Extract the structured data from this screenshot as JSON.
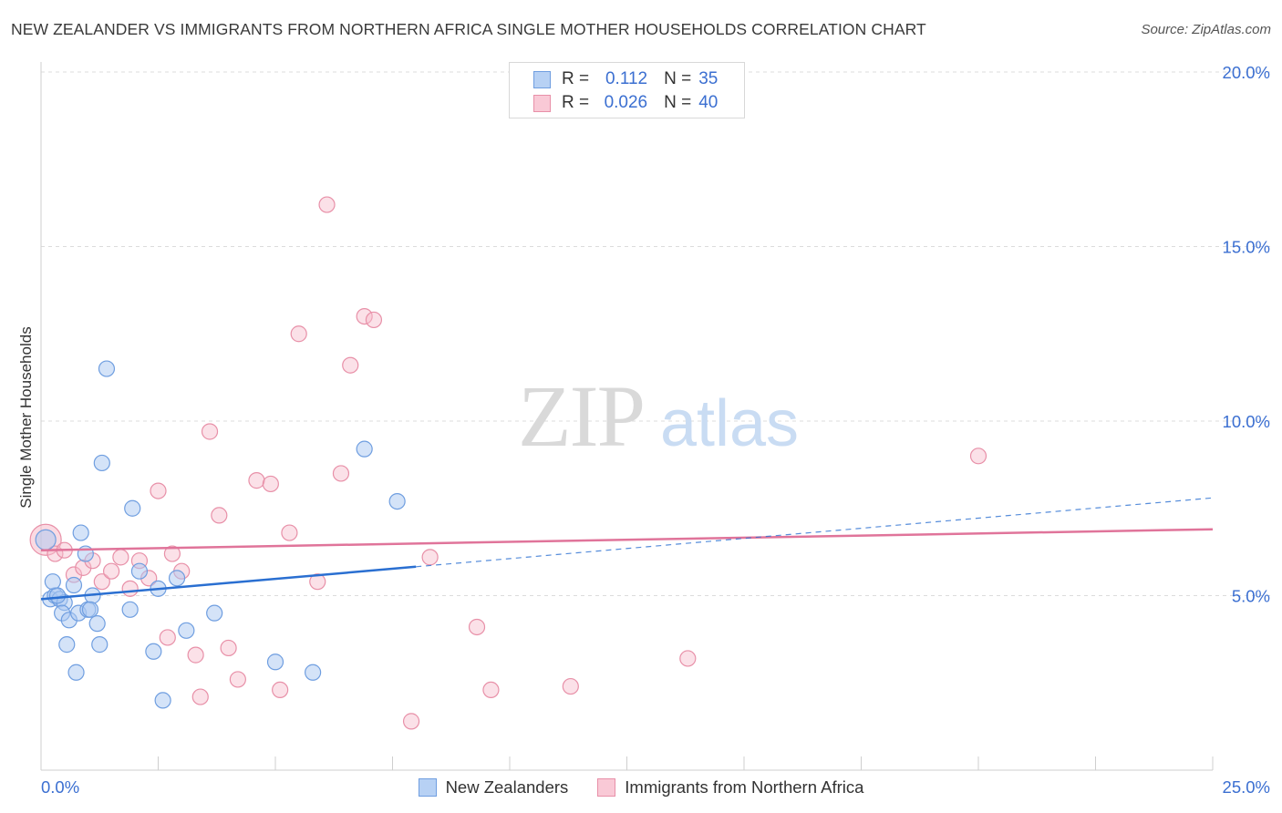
{
  "header": {
    "title": "NEW ZEALANDER VS IMMIGRANTS FROM NORTHERN AFRICA SINGLE MOTHER HOUSEHOLDS CORRELATION CHART",
    "source": "Source: ZipAtlas.com"
  },
  "legend_top": [
    {
      "r_label": "R =",
      "r_value": "0.112",
      "n_label": "N =",
      "n_value": "35"
    },
    {
      "r_label": "R =",
      "r_value": "0.026",
      "n_label": "N =",
      "n_value": "40"
    }
  ],
  "colors": {
    "blue_fill": "#a9c8f2",
    "blue_stroke": "#6f9ee0",
    "blue_line": "#2a6fd1",
    "pink_fill": "#f7bccb",
    "pink_stroke": "#e890a8",
    "pink_line": "#e0749a",
    "tick_text": "#3b6fd1",
    "grid": "#dcdcdc"
  },
  "chart_data": {
    "type": "scatter",
    "title": "NEW ZEALANDER VS IMMIGRANTS FROM NORTHERN AFRICA SINGLE MOTHER HOUSEHOLDS CORRELATION CHART",
    "xlabel": "",
    "ylabel": "Single Mother Households",
    "xlim": [
      0,
      25
    ],
    "ylim": [
      0,
      20.8
    ],
    "x_tick_labels": [
      "0.0%",
      "25.0%"
    ],
    "y_ticks": [
      5,
      10,
      15,
      20
    ],
    "y_tick_labels": [
      "5.0%",
      "10.0%",
      "15.0%",
      "20.0%"
    ],
    "watermark": "ZIPatlas",
    "series": [
      {
        "name": "New Zealanders",
        "color": "blue",
        "r": 0.112,
        "n": 35,
        "trend": {
          "x0": 0,
          "y0": 4.9,
          "x_solid_end": 8.0,
          "x1": 25,
          "y1": 7.8
        },
        "points": [
          [
            0.1,
            6.6
          ],
          [
            0.2,
            4.9
          ],
          [
            0.3,
            5.0
          ],
          [
            0.25,
            5.4
          ],
          [
            0.4,
            4.9
          ],
          [
            0.5,
            4.8
          ],
          [
            0.45,
            4.5
          ],
          [
            0.6,
            4.3
          ],
          [
            0.55,
            3.6
          ],
          [
            0.7,
            5.3
          ],
          [
            0.8,
            4.5
          ],
          [
            0.75,
            2.8
          ],
          [
            0.85,
            6.8
          ],
          [
            0.95,
            6.2
          ],
          [
            1.0,
            4.6
          ],
          [
            1.1,
            5.0
          ],
          [
            1.2,
            4.2
          ],
          [
            1.25,
            3.6
          ],
          [
            1.3,
            8.8
          ],
          [
            1.4,
            11.5
          ],
          [
            1.9,
            4.6
          ],
          [
            1.95,
            7.5
          ],
          [
            2.1,
            5.7
          ],
          [
            2.4,
            3.4
          ],
          [
            2.5,
            5.2
          ],
          [
            2.6,
            2.0
          ],
          [
            2.9,
            5.5
          ],
          [
            3.1,
            4.0
          ],
          [
            3.7,
            4.5
          ],
          [
            5.0,
            3.1
          ],
          [
            5.8,
            2.8
          ],
          [
            6.9,
            9.2
          ],
          [
            7.6,
            7.7
          ],
          [
            0.35,
            5.0
          ],
          [
            1.05,
            4.6
          ]
        ]
      },
      {
        "name": "Immigrants from Northern Africa",
        "color": "pink",
        "r": 0.026,
        "n": 40,
        "trend": {
          "x0": 0,
          "y0": 6.3,
          "x1": 25,
          "y1": 6.9
        },
        "points": [
          [
            0.1,
            6.6
          ],
          [
            0.3,
            6.2
          ],
          [
            0.5,
            6.3
          ],
          [
            0.7,
            5.6
          ],
          [
            0.9,
            5.8
          ],
          [
            1.1,
            6.0
          ],
          [
            1.3,
            5.4
          ],
          [
            1.5,
            5.7
          ],
          [
            1.7,
            6.1
          ],
          [
            1.9,
            5.2
          ],
          [
            2.1,
            6.0
          ],
          [
            2.3,
            5.5
          ],
          [
            2.5,
            8.0
          ],
          [
            2.7,
            3.8
          ],
          [
            2.8,
            6.2
          ],
          [
            3.0,
            5.7
          ],
          [
            3.3,
            3.3
          ],
          [
            3.6,
            9.7
          ],
          [
            3.8,
            7.3
          ],
          [
            4.0,
            3.5
          ],
          [
            4.2,
            2.6
          ],
          [
            4.6,
            8.3
          ],
          [
            4.9,
            8.2
          ],
          [
            5.1,
            2.3
          ],
          [
            5.3,
            6.8
          ],
          [
            5.5,
            12.5
          ],
          [
            5.9,
            5.4
          ],
          [
            6.1,
            16.2
          ],
          [
            6.4,
            8.5
          ],
          [
            6.6,
            11.6
          ],
          [
            6.9,
            13.0
          ],
          [
            7.1,
            12.9
          ],
          [
            7.9,
            1.4
          ],
          [
            8.3,
            6.1
          ],
          [
            9.3,
            4.1
          ],
          [
            9.6,
            2.3
          ],
          [
            11.3,
            2.4
          ],
          [
            13.8,
            3.2
          ],
          [
            20.0,
            9.0
          ],
          [
            3.4,
            2.1
          ]
        ]
      }
    ]
  },
  "legend_bottom": [
    {
      "label": "New Zealanders"
    },
    {
      "label": "Immigrants from Northern Africa"
    }
  ]
}
